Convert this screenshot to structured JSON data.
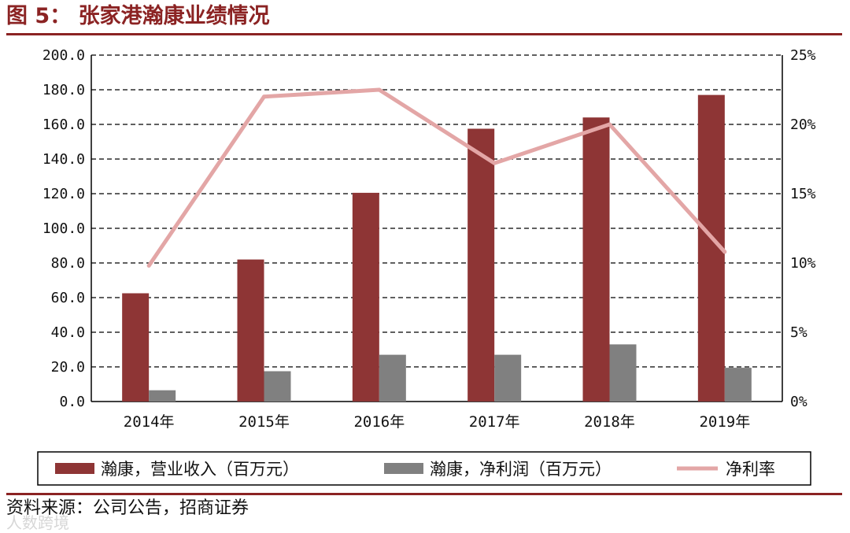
{
  "header": {
    "title": "图 5： 张家港瀚康业绩情况"
  },
  "footer": {
    "source": "资料来源：公司公告，招商证券",
    "watermark": "人数跨境"
  },
  "colors": {
    "revenue_bar": "#8e3535",
    "profit_bar": "#808080",
    "margin_line": "#e3a6a6",
    "accent_rule": "#8b2323"
  },
  "chart_data": {
    "type": "bar",
    "categories": [
      "2014年",
      "2015年",
      "2016年",
      "2017年",
      "2018年",
      "2019年"
    ],
    "series": [
      {
        "name": "瀚康，营业收入（百万元）",
        "type": "bar",
        "axis": "left",
        "values": [
          62.5,
          82.0,
          120.5,
          157.5,
          164.0,
          177.0
        ]
      },
      {
        "name": "瀚康，净利润（百万元）",
        "type": "bar",
        "axis": "left",
        "values": [
          6.5,
          17.5,
          27.0,
          27.0,
          33.0,
          19.5
        ]
      },
      {
        "name": "净利率",
        "type": "line",
        "axis": "right",
        "values": [
          9.8,
          22.0,
          22.5,
          17.2,
          20.0,
          10.8
        ]
      }
    ],
    "y_left": {
      "ylim": [
        0,
        200
      ],
      "ticks": [
        "0.0",
        "20.0",
        "40.0",
        "60.0",
        "80.0",
        "100.0",
        "120.0",
        "140.0",
        "160.0",
        "180.0",
        "200.0"
      ]
    },
    "y_right": {
      "ylim": [
        0,
        25
      ],
      "ticks": [
        "0%",
        "5%",
        "10%",
        "15%",
        "20%",
        "25%"
      ]
    },
    "grid": "horizontal-dashed",
    "legend_position": "bottom"
  }
}
